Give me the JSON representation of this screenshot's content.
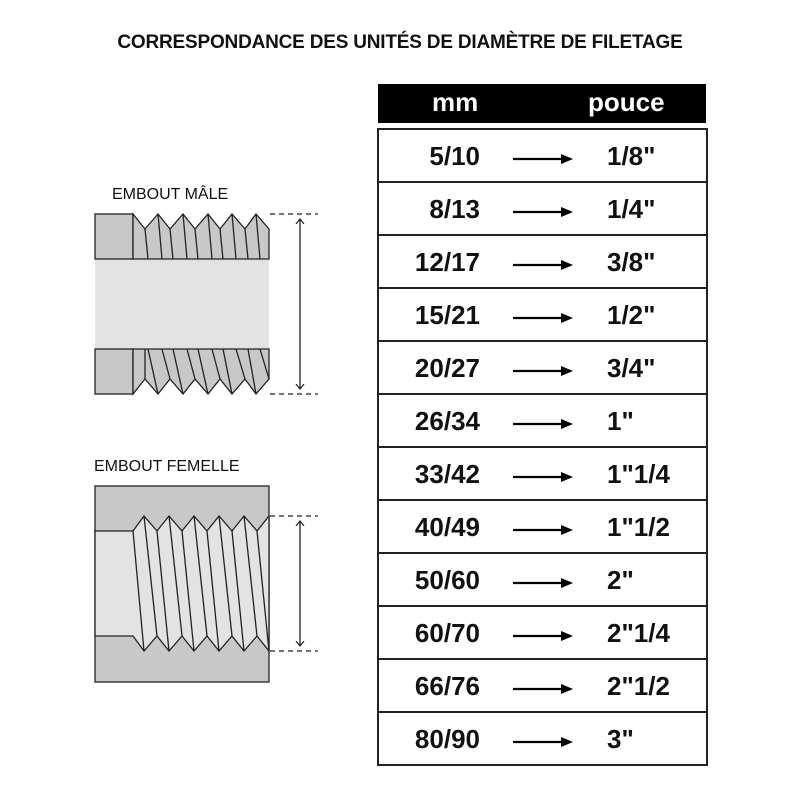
{
  "title": "CORRESPONDANCE DES UNITÉS DE DIAMÈTRE DE FILETAGE",
  "diagrams": {
    "male_label": "EMBOUT MÂLE",
    "female_label": "EMBOUT FEMELLE"
  },
  "table": {
    "headers": {
      "mm": "mm",
      "pouce": "pouce"
    },
    "rows": [
      {
        "mm": "5/10",
        "pouce": "1/8\""
      },
      {
        "mm": "8/13",
        "pouce": "1/4\""
      },
      {
        "mm": "12/17",
        "pouce": "3/8\""
      },
      {
        "mm": "15/21",
        "pouce": "1/2\""
      },
      {
        "mm": "20/27",
        "pouce": "3/4\""
      },
      {
        "mm": "26/34",
        "pouce": "1\""
      },
      {
        "mm": "33/42",
        "pouce": "1\"1/4"
      },
      {
        "mm": "40/49",
        "pouce": "1\"1/2"
      },
      {
        "mm": "50/60",
        "pouce": "2\""
      },
      {
        "mm": "60/70",
        "pouce": "2\"1/4"
      },
      {
        "mm": "66/76",
        "pouce": "2\"1/2"
      },
      {
        "mm": "80/90",
        "pouce": "3\""
      }
    ]
  },
  "colors": {
    "dark_grey": "#c8c8c8",
    "light_grey": "#e3e3e3",
    "header_bg": "#000000"
  }
}
